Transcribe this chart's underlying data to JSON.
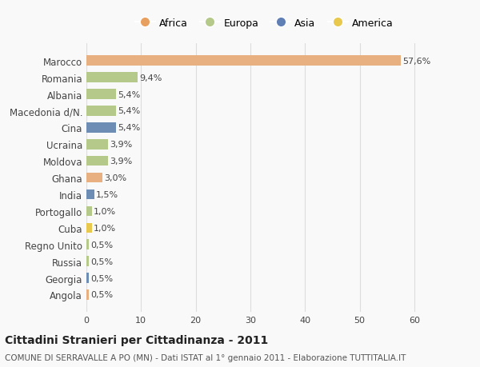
{
  "countries": [
    "Marocco",
    "Romania",
    "Albania",
    "Macedonia d/N.",
    "Cina",
    "Ucraina",
    "Moldova",
    "Ghana",
    "India",
    "Portogallo",
    "Cuba",
    "Regno Unito",
    "Russia",
    "Georgia",
    "Angola"
  ],
  "values": [
    57.6,
    9.4,
    5.4,
    5.4,
    5.4,
    3.9,
    3.9,
    3.0,
    1.5,
    1.0,
    1.0,
    0.5,
    0.5,
    0.5,
    0.5
  ],
  "labels": [
    "57,6%",
    "9,4%",
    "5,4%",
    "5,4%",
    "5,4%",
    "3,9%",
    "3,9%",
    "3,0%",
    "1,5%",
    "1,0%",
    "1,0%",
    "0,5%",
    "0,5%",
    "0,5%",
    "0,5%"
  ],
  "colors": [
    "#e8b080",
    "#b5c98a",
    "#b5c98a",
    "#b5c98a",
    "#6d8db5",
    "#b5c98a",
    "#b5c98a",
    "#e8b080",
    "#6d8db5",
    "#b5c98a",
    "#e8c94e",
    "#b5c98a",
    "#b5c98a",
    "#6d8db5",
    "#e8b080"
  ],
  "continents": [
    "Africa",
    "Europa",
    "Asia",
    "America"
  ],
  "legend_colors": [
    "#e8a060",
    "#b5c98a",
    "#5f7fb5",
    "#e8c94e"
  ],
  "title": "Cittadini Stranieri per Cittadinanza - 2011",
  "subtitle": "COMUNE DI SERRAVALLE A PO (MN) - Dati ISTAT al 1° gennaio 2011 - Elaborazione TUTTITALIA.IT",
  "xlabel_vals": [
    0,
    10,
    20,
    30,
    40,
    50,
    60
  ],
  "xlim": [
    0,
    65
  ],
  "background_color": "#f9f9f9",
  "grid_color": "#dddddd"
}
